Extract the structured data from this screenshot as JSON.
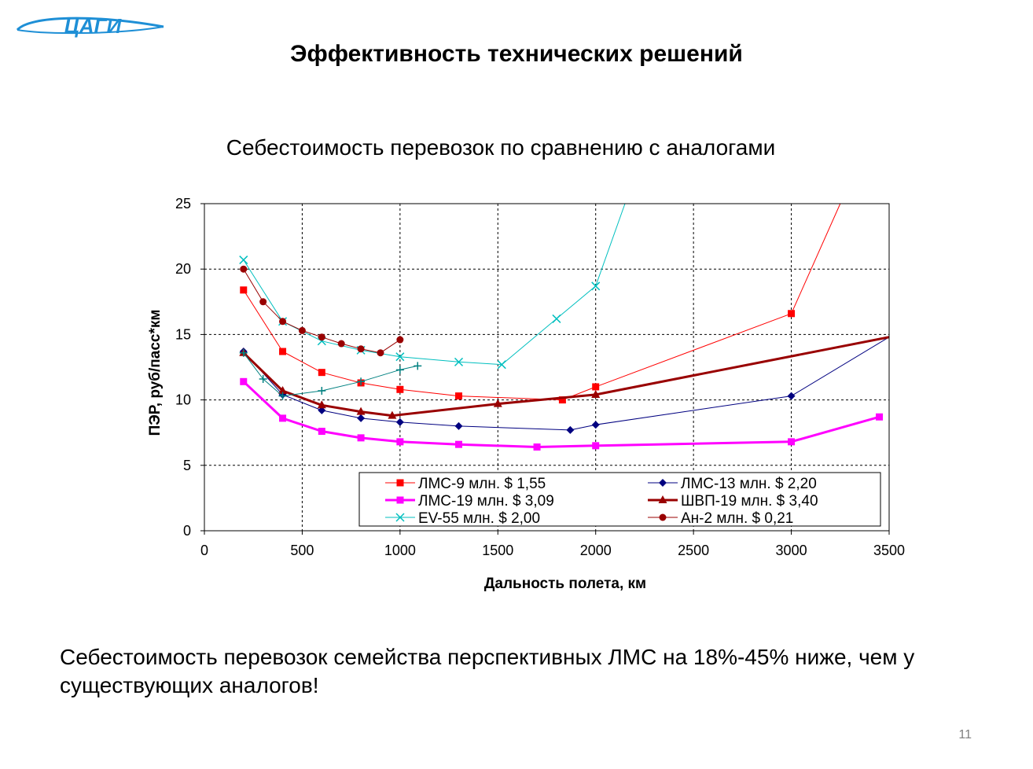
{
  "logo": {
    "text": "ЦАГИ",
    "color": "#1e8fd6"
  },
  "slide": {
    "title": "Эффективность технических решений",
    "footnote": "Себестоимость перевозок семейства перспективных ЛМС на 18%-45% ниже, чем у существующих аналогов!",
    "page_number": "11"
  },
  "chart_data": {
    "type": "line",
    "title": "Себестоимость перевозок по сравнению с аналогами",
    "xlabel": "Дальность полета, км",
    "ylabel": "ПЭР, руб/пасс*км",
    "xlim": [
      0,
      3500
    ],
    "ylim": [
      0,
      25
    ],
    "xticks": [
      0,
      500,
      1000,
      1500,
      2000,
      2500,
      3000,
      3500
    ],
    "yticks": [
      0,
      5,
      10,
      15,
      20,
      25
    ],
    "grid": {
      "x": "dashed",
      "y": "dashed"
    },
    "legend_position": "bottom-right inside plot",
    "series": [
      {
        "name": "ЛМС-9 млн. $ 1,55",
        "color": "#ff0000",
        "marker": "square",
        "line_width": 1,
        "points": [
          [
            200,
            18.4
          ],
          [
            400,
            13.7
          ],
          [
            600,
            12.1
          ],
          [
            800,
            11.3
          ],
          [
            1000,
            10.8
          ],
          [
            1300,
            10.3
          ],
          [
            1830,
            10.0
          ],
          [
            2000,
            11.0
          ],
          [
            3000,
            16.6
          ],
          [
            3250,
            25
          ]
        ],
        "marker_indices": [
          0,
          1,
          2,
          3,
          4,
          5,
          6,
          7,
          8
        ]
      },
      {
        "name": "ЛМС-13 млн. $ 2,20",
        "color": "#000080",
        "marker": "diamond",
        "line_width": 1,
        "points": [
          [
            200,
            13.7
          ],
          [
            400,
            10.4
          ],
          [
            600,
            9.2
          ],
          [
            800,
            8.6
          ],
          [
            1000,
            8.3
          ],
          [
            1300,
            8.0
          ],
          [
            1870,
            7.7
          ],
          [
            2000,
            8.1
          ],
          [
            3000,
            10.3
          ],
          [
            3500,
            14.8
          ]
        ],
        "marker_indices": [
          0,
          1,
          2,
          3,
          4,
          5,
          6,
          7,
          8
        ]
      },
      {
        "name": "ЛМС-19 млн. $ 3,09",
        "color": "#ff00ff",
        "marker": "square",
        "line_width": 3,
        "points": [
          [
            200,
            11.4
          ],
          [
            400,
            8.6
          ],
          [
            600,
            7.6
          ],
          [
            800,
            7.1
          ],
          [
            1000,
            6.8
          ],
          [
            1300,
            6.6
          ],
          [
            1700,
            6.4
          ],
          [
            2000,
            6.5
          ],
          [
            3000,
            6.8
          ],
          [
            3450,
            8.7
          ]
        ],
        "marker_indices": [
          0,
          1,
          2,
          3,
          4,
          5,
          6,
          7,
          8,
          9
        ]
      },
      {
        "name": "ШВП-19 млн. $ 3,40",
        "color": "#990000",
        "marker": "triangle",
        "line_width": 3,
        "points": [
          [
            200,
            13.6
          ],
          [
            400,
            10.7
          ],
          [
            600,
            9.6
          ],
          [
            800,
            9.1
          ],
          [
            960,
            8.8
          ],
          [
            1500,
            9.7
          ],
          [
            2000,
            10.4
          ],
          [
            3500,
            14.8
          ]
        ],
        "marker_indices": [
          0,
          1,
          2,
          3,
          4,
          5,
          6
        ]
      },
      {
        "name": "EV-55 млн. $ 2,00",
        "color": "#00bfbf",
        "marker": "x",
        "line_width": 1,
        "points": [
          [
            200,
            20.7
          ],
          [
            400,
            16.0
          ],
          [
            600,
            14.5
          ],
          [
            800,
            13.8
          ],
          [
            1000,
            13.3
          ],
          [
            1300,
            12.9
          ],
          [
            1520,
            12.7
          ],
          [
            1800,
            16.2
          ],
          [
            2000,
            18.7
          ],
          [
            2150,
            25
          ]
        ],
        "marker_indices": [
          0,
          1,
          2,
          3,
          4,
          5,
          6,
          7,
          8
        ]
      },
      {
        "name": "Ан-2 млн. $ 0,21",
        "color": "#990000",
        "marker": "circle",
        "line_width": 1,
        "points": [
          [
            200,
            20.0
          ],
          [
            300,
            17.5
          ],
          [
            400,
            16.0
          ],
          [
            500,
            15.3
          ],
          [
            600,
            14.8
          ],
          [
            700,
            14.3
          ],
          [
            800,
            13.9
          ],
          [
            900,
            13.6
          ],
          [
            1000,
            14.6
          ]
        ],
        "marker_indices": [
          0,
          1,
          2,
          3,
          4,
          5,
          6,
          7,
          8
        ]
      },
      {
        "name": "",
        "color": "#008080",
        "marker": "plus",
        "line_width": 1,
        "points": [
          [
            200,
            13.6
          ],
          [
            300,
            11.6
          ],
          [
            400,
            10.3
          ],
          [
            600,
            10.7
          ],
          [
            800,
            11.4
          ],
          [
            1000,
            12.3
          ],
          [
            1090,
            12.6
          ]
        ],
        "marker_indices": [
          0,
          1,
          2,
          3,
          4,
          5,
          6
        ]
      }
    ]
  }
}
